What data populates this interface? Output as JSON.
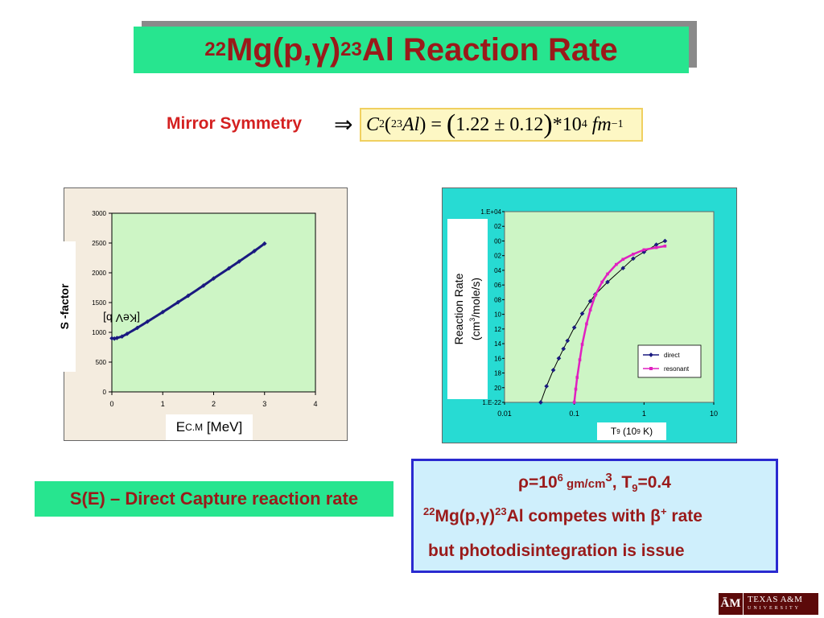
{
  "title": {
    "pre_sup": "22",
    "mid1": "Mg(p,",
    "gamma": "γ",
    "mid2": ")",
    "post_sup": "23",
    "end": "Al Reaction Rate"
  },
  "mirror": {
    "label": "Mirror Symmetry",
    "arrow": "⇒",
    "formula": {
      "c": "C",
      "c_sup": "2",
      "open": "(",
      "al_sup": "23",
      "al": "Al",
      "close": ")",
      "eq": " = ",
      "lparen": "(",
      "value": "1.22 ± 0.12",
      "rparen": ")",
      "times": "*10",
      "exp": "4",
      "unit": " fm",
      "unit_exp": "−1"
    }
  },
  "chart_s": {
    "ylabel_bold": "S -factor",
    "ylabel_rest": " [KeV b]",
    "xlabel_main": "E",
    "xlabel_sub": "C.M",
    "xlabel_rest": " [MeV]"
  },
  "chart_r": {
    "ylabel_line1": "Reaction Rate",
    "ylabel_line2_pre": "(cm",
    "ylabel_line2_sup": "3",
    "ylabel_line2_post": "/mole/s)",
    "xlabel_pre": "T",
    "xlabel_sub": "9",
    "xlabel_mid": " (10",
    "xlabel_sup": "9",
    "xlabel_post": " K)"
  },
  "se_label": "S(E) – Direct Capture reaction rate",
  "info": {
    "rho": "ρ",
    "rho_eq": "=10",
    "rho_exp": "6",
    "rho_unit": " gm/cm",
    "rho_unit_exp": "3",
    "t_pre": ", T",
    "t_sub": "9",
    "t_val": "=0.4",
    "line2_sup1": "22",
    "line2_a": "Mg(p,",
    "line2_gamma": "γ",
    "line2_b": ")",
    "line2_sup2": "23",
    "line2_c": "Al competes with ",
    "line2_beta": "β",
    "line2_plus": "+",
    "line2_d": " rate",
    "line3": "but photodisintegration is issue"
  },
  "logo": {
    "mark": "ĀM",
    "text1": "TEXAS A&M",
    "text2": "UNIVERSITY"
  },
  "colors": {
    "title_green": "#27e58f",
    "title_text": "#9a1a1a",
    "mirror_red": "#d42020",
    "plot_green": "#cdf5c5",
    "plot_cyan": "#27dbd3",
    "direct": "#1a1a80",
    "resonant": "#e020c0"
  },
  "chart_data": [
    {
      "type": "line",
      "title": "",
      "xlabel": "E C.M [MeV]",
      "ylabel": "S -factor [KeV b]",
      "xlim": [
        0,
        4
      ],
      "ylim": [
        0,
        3000
      ],
      "xticks": [
        0,
        1,
        2,
        3,
        4
      ],
      "yticks": [
        0,
        500,
        1000,
        1500,
        2000,
        2500,
        3000
      ],
      "grid": false,
      "series": [
        {
          "x": [
            0.0,
            0.05,
            0.1,
            0.2,
            0.3,
            0.5,
            0.7,
            1.0,
            1.3,
            1.5,
            1.8,
            2.0,
            2.3,
            2.5,
            2.8,
            3.0
          ],
          "values": [
            900,
            895,
            905,
            930,
            975,
            1075,
            1180,
            1340,
            1505,
            1615,
            1785,
            1905,
            2075,
            2190,
            2365,
            2490
          ]
        }
      ]
    },
    {
      "type": "line",
      "title": "",
      "xlabel": "T9 (10^9 K)",
      "ylabel": "Reaction Rate (cm3/mole/s)",
      "x_scale": "log",
      "xlim": [
        0.01,
        10
      ],
      "xticks": [
        "0.01",
        "0.1",
        "1",
        "10"
      ],
      "ylim_exponent": [
        -22,
        4
      ],
      "yticks": [
        "1.E-22",
        "20",
        "18",
        "16",
        "14",
        "12",
        "10",
        "08",
        "06",
        "04",
        "02",
        "00",
        "02",
        "1.E+04"
      ],
      "legend_position": "lower-right",
      "grid": false,
      "series": [
        {
          "name": "direct",
          "x": [
            0.033,
            0.04,
            0.05,
            0.06,
            0.07,
            0.08,
            0.1,
            0.13,
            0.17,
            0.2,
            0.3,
            0.5,
            0.7,
            1.0,
            1.5,
            2.0
          ],
          "exponent": [
            -22.0,
            -19.8,
            -17.6,
            -16.0,
            -14.7,
            -13.6,
            -11.8,
            -9.9,
            -8.2,
            -7.3,
            -5.6,
            -3.7,
            -2.4,
            -1.5,
            -0.5,
            0.0
          ]
        },
        {
          "name": "resonant",
          "x": [
            0.1,
            0.105,
            0.11,
            0.12,
            0.13,
            0.15,
            0.17,
            0.2,
            0.25,
            0.3,
            0.4,
            0.5,
            0.7,
            1.0,
            1.5,
            2.0
          ],
          "exponent": [
            -22.0,
            -20.2,
            -18.6,
            -16.2,
            -14.1,
            -11.3,
            -9.4,
            -7.4,
            -5.6,
            -4.5,
            -3.2,
            -2.5,
            -1.8,
            -1.2,
            -0.9,
            -0.7
          ]
        }
      ]
    }
  ]
}
